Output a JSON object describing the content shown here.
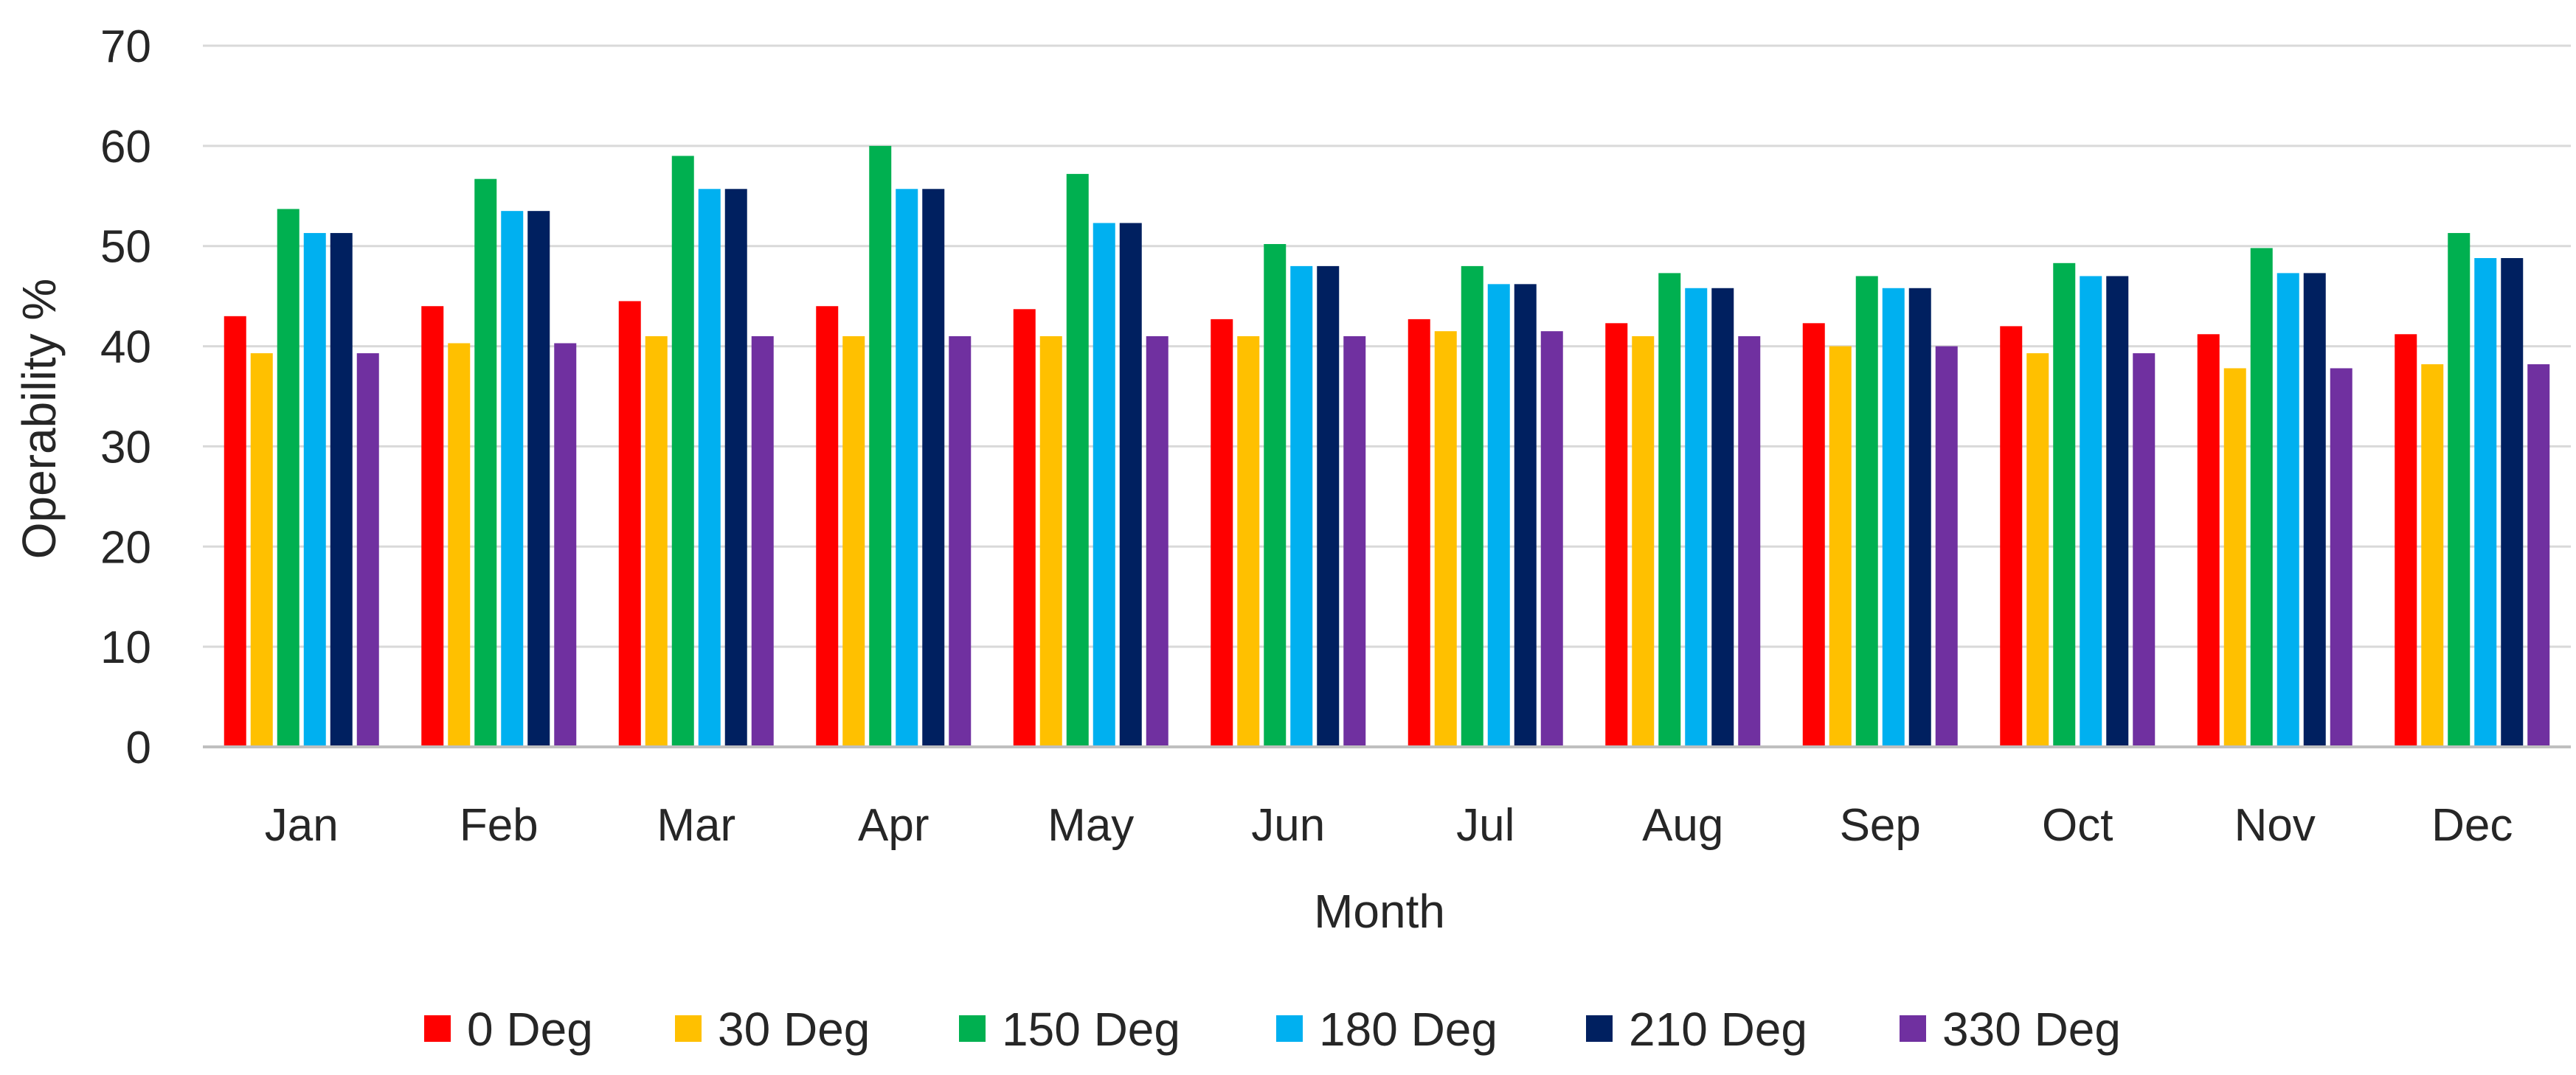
{
  "chart_data": {
    "type": "bar",
    "xlabel": "Month",
    "ylabel": "Operability %",
    "ylim": [
      0,
      70
    ],
    "yticks": [
      0,
      10,
      20,
      30,
      40,
      50,
      60,
      70
    ],
    "grid": "horizontal",
    "legend_position": "bottom",
    "categories": [
      "Jan",
      "Feb",
      "Mar",
      "Apr",
      "May",
      "Jun",
      "Jul",
      "Aug",
      "Sep",
      "Oct",
      "Nov",
      "Dec"
    ],
    "series": [
      {
        "name": "0 Deg",
        "color": "#ff0000",
        "values": [
          43.0,
          44.0,
          44.5,
          44.0,
          43.7,
          42.7,
          42.7,
          42.3,
          42.3,
          42.0,
          41.2,
          41.2
        ]
      },
      {
        "name": "30 Deg",
        "color": "#ffc000",
        "values": [
          39.3,
          40.3,
          41.0,
          41.0,
          41.0,
          41.0,
          41.5,
          41.0,
          40.0,
          39.3,
          37.8,
          38.2
        ]
      },
      {
        "name": "150 Deg",
        "color": "#00b050",
        "values": [
          53.7,
          56.7,
          59.0,
          60.0,
          57.2,
          50.2,
          48.0,
          47.3,
          47.0,
          48.3,
          49.8,
          51.3
        ]
      },
      {
        "name": "180 Deg",
        "color": "#00b0f0",
        "values": [
          51.3,
          53.5,
          55.7,
          55.7,
          52.3,
          48.0,
          46.2,
          45.8,
          45.8,
          47.0,
          47.3,
          48.8
        ]
      },
      {
        "name": "210 Deg",
        "color": "#002060",
        "values": [
          51.3,
          53.5,
          55.7,
          55.7,
          52.3,
          48.0,
          46.2,
          45.8,
          45.8,
          47.0,
          47.3,
          48.8
        ]
      },
      {
        "name": "330 Deg",
        "color": "#7030a0",
        "values": [
          39.3,
          40.3,
          41.0,
          41.0,
          41.0,
          41.0,
          41.5,
          41.0,
          40.0,
          39.3,
          37.8,
          38.2
        ]
      }
    ]
  }
}
